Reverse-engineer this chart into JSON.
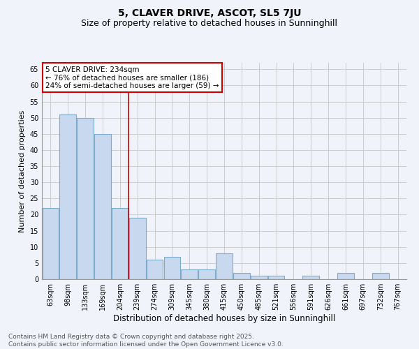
{
  "title1": "5, CLAVER DRIVE, ASCOT, SL5 7JU",
  "title2": "Size of property relative to detached houses in Sunninghill",
  "xlabel": "Distribution of detached houses by size in Sunninghill",
  "ylabel": "Number of detached properties",
  "categories": [
    "63sqm",
    "98sqm",
    "133sqm",
    "169sqm",
    "204sqm",
    "239sqm",
    "274sqm",
    "309sqm",
    "345sqm",
    "380sqm",
    "415sqm",
    "450sqm",
    "485sqm",
    "521sqm",
    "556sqm",
    "591sqm",
    "626sqm",
    "661sqm",
    "697sqm",
    "732sqm",
    "767sqm"
  ],
  "values": [
    22,
    51,
    50,
    45,
    22,
    19,
    6,
    7,
    3,
    3,
    8,
    2,
    1,
    1,
    0,
    1,
    0,
    2,
    0,
    2,
    0
  ],
  "bar_color": "#c8d8ee",
  "bar_edge_color": "#7aaccc",
  "grid_color": "#cccccc",
  "background_color": "#f0f4fa",
  "plot_bg_color": "#f0f4fa",
  "red_line_index": 5,
  "annotation_text": "5 CLAVER DRIVE: 234sqm\n← 76% of detached houses are smaller (186)\n24% of semi-detached houses are larger (59) →",
  "annotation_box_color": "#ffffff",
  "annotation_border_color": "#cc0000",
  "ylim": [
    0,
    67
  ],
  "yticks": [
    0,
    5,
    10,
    15,
    20,
    25,
    30,
    35,
    40,
    45,
    50,
    55,
    60,
    65
  ],
  "footer": "Contains HM Land Registry data © Crown copyright and database right 2025.\nContains public sector information licensed under the Open Government Licence v3.0.",
  "title1_fontsize": 10,
  "title2_fontsize": 9,
  "xlabel_fontsize": 8.5,
  "ylabel_fontsize": 8,
  "tick_fontsize": 7,
  "footer_fontsize": 6.5,
  "annot_fontsize": 7.5
}
